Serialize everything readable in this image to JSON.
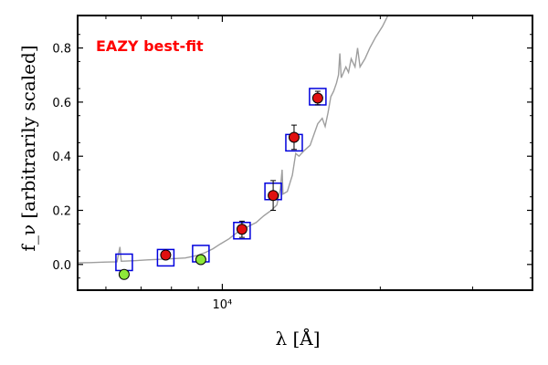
{
  "chart_data": {
    "type": "scatter",
    "annotation": "EAZY best-fit",
    "annotation_color": "#ff0000",
    "xlabel": "λ [Å]",
    "ylabel": "f_ν [arbitrarily scaled]",
    "x_scale": "log",
    "xlim": [
      5300,
      39000
    ],
    "ylim": [
      -0.095,
      0.92
    ],
    "x_ticks": [
      {
        "value": 10000,
        "label": "10⁴"
      }
    ],
    "y_ticks": [
      {
        "value": 0.0,
        "label": "0.0"
      },
      {
        "value": 0.2,
        "label": "0.2"
      },
      {
        "value": 0.4,
        "label": "0.4"
      },
      {
        "value": 0.6,
        "label": "0.6"
      },
      {
        "value": 0.8,
        "label": "0.8"
      }
    ],
    "grid": false,
    "colors": {
      "model_spectrum": "#9e9e9e",
      "model_photometry": "#0000dd",
      "detection": "#e01010",
      "nondetection": "#8ee83a"
    },
    "series": [
      {
        "kind": "line",
        "color_key": "model_spectrum",
        "points": [
          [
            5300,
            0.006
          ],
          [
            5600,
            0.007
          ],
          [
            6000,
            0.009
          ],
          [
            6300,
            0.01
          ],
          [
            6380,
            0.065
          ],
          [
            6420,
            0.012
          ],
          [
            6800,
            0.014
          ],
          [
            7200,
            0.017
          ],
          [
            7600,
            0.019
          ],
          [
            8000,
            0.021
          ],
          [
            8500,
            0.024
          ],
          [
            9000,
            0.034
          ],
          [
            9300,
            0.045
          ],
          [
            9600,
            0.058
          ],
          [
            9900,
            0.075
          ],
          [
            10300,
            0.095
          ],
          [
            10700,
            0.12
          ],
          [
            11200,
            0.14
          ],
          [
            11600,
            0.155
          ],
          [
            12000,
            0.18
          ],
          [
            12400,
            0.2
          ],
          [
            12700,
            0.22
          ],
          [
            12900,
            0.28
          ],
          [
            13000,
            0.35
          ],
          [
            13050,
            0.26
          ],
          [
            13300,
            0.27
          ],
          [
            13600,
            0.33
          ],
          [
            13800,
            0.41
          ],
          [
            14000,
            0.4
          ],
          [
            14300,
            0.42
          ],
          [
            14700,
            0.44
          ],
          [
            15200,
            0.52
          ],
          [
            15500,
            0.54
          ],
          [
            15700,
            0.51
          ],
          [
            15900,
            0.56
          ],
          [
            16100,
            0.62
          ],
          [
            16300,
            0.64
          ],
          [
            16500,
            0.67
          ],
          [
            16650,
            0.7
          ],
          [
            16750,
            0.78
          ],
          [
            16850,
            0.69
          ],
          [
            17200,
            0.73
          ],
          [
            17400,
            0.71
          ],
          [
            17600,
            0.76
          ],
          [
            17900,
            0.73
          ],
          [
            18100,
            0.8
          ],
          [
            18300,
            0.73
          ],
          [
            18700,
            0.76
          ],
          [
            19100,
            0.8
          ],
          [
            19600,
            0.84
          ],
          [
            20200,
            0.88
          ],
          [
            20800,
            0.93
          ]
        ]
      },
      {
        "kind": "model-photometry",
        "marker": "open-square",
        "color_key": "model_photometry",
        "x": [
          6500,
          7800,
          9100,
          10900,
          12500,
          13700,
          15200
        ],
        "y": [
          0.008,
          0.025,
          0.04,
          0.125,
          0.27,
          0.45,
          0.62
        ]
      },
      {
        "kind": "observed",
        "marker": "filled-circle",
        "color_key": "detection",
        "x": [
          7800,
          10900,
          12500,
          13700,
          15200
        ],
        "y": [
          0.035,
          0.13,
          0.255,
          0.47,
          0.615
        ],
        "err": [
          0.01,
          0.03,
          0.055,
          0.045,
          0.025
        ]
      },
      {
        "kind": "observed",
        "marker": "filled-circle",
        "color_key": "nondetection",
        "x": [
          6500,
          9100
        ],
        "y": [
          -0.037,
          0.018
        ],
        "err": [
          0.012,
          0.014
        ]
      }
    ]
  }
}
